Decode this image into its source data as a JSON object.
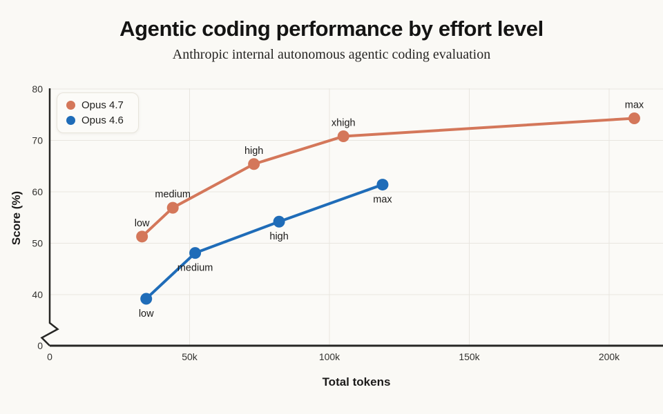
{
  "page": {
    "background": "#faf9f5",
    "plot_background": "#fbfaf7"
  },
  "chart": {
    "title": "Agentic coding performance by effort level",
    "subtitle": "Anthropic internal autonomous agentic coding evaluation",
    "xlabel": "Total tokens",
    "ylabel": "Score (%)"
  },
  "colors": {
    "grid": "#e8e5df",
    "axis": "#262624",
    "tick_text": "#33322f",
    "point_label_text": "#1c1b1a",
    "orange": "#d4775a",
    "blue": "#1f6cb8"
  },
  "chart_data": {
    "type": "line",
    "title": "Agentic coding performance by effort level",
    "subtitle": "Anthropic internal autonomous agentic coding evaluation",
    "xlabel": "Total tokens",
    "ylabel": "Score (%)",
    "grid": true,
    "legend_position": "top-left",
    "x_ticks": [
      {
        "value": 0,
        "label": "0"
      },
      {
        "value": 50000,
        "label": "50k"
      },
      {
        "value": 100000,
        "label": "100k"
      },
      {
        "value": 150000,
        "label": "150k"
      },
      {
        "value": 200000,
        "label": "200k"
      }
    ],
    "y_ticks": [
      0,
      40,
      50,
      60,
      70,
      80
    ],
    "y_axis_break": {
      "between": [
        0,
        40
      ]
    },
    "xlim": [
      0,
      219000
    ],
    "ylim": [
      0,
      80
    ],
    "series": [
      {
        "name": "Opus 4.7",
        "color": "#d4775a",
        "points": [
          {
            "label": "low",
            "x": 33000,
            "y": 51.3,
            "label_side": "above"
          },
          {
            "label": "medium",
            "x": 44000,
            "y": 56.9,
            "label_side": "above"
          },
          {
            "label": "high",
            "x": 73000,
            "y": 65.4,
            "label_side": "above"
          },
          {
            "label": "xhigh",
            "x": 105000,
            "y": 70.8,
            "label_side": "above"
          },
          {
            "label": "max",
            "x": 209000,
            "y": 74.3,
            "label_side": "above"
          }
        ]
      },
      {
        "name": "Opus 4.6",
        "color": "#1f6cb8",
        "points": [
          {
            "label": "low",
            "x": 34500,
            "y": 39.2,
            "label_side": "below"
          },
          {
            "label": "medium",
            "x": 52000,
            "y": 48.1,
            "label_side": "below"
          },
          {
            "label": "high",
            "x": 82000,
            "y": 54.2,
            "label_side": "below"
          },
          {
            "label": "max",
            "x": 119000,
            "y": 61.4,
            "label_side": "below"
          }
        ]
      }
    ]
  }
}
